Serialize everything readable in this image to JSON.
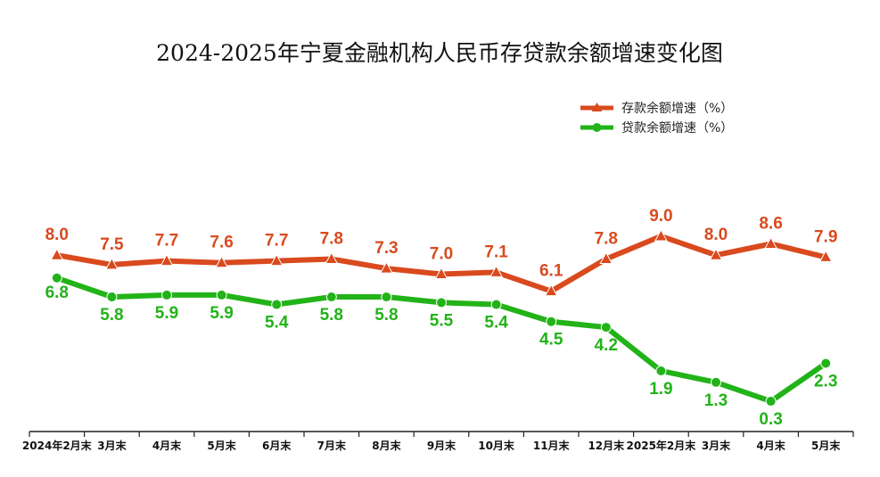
{
  "chart_data": {
    "type": "line",
    "title": "2024-2025年宁夏金融机构人民币存贷款余额增速变化图",
    "categories": [
      "2024年2月末",
      "3月末",
      "4月末",
      "5月末",
      "6月末",
      "7月末",
      "8月末",
      "9月末",
      "10月末",
      "11月末",
      "12月末",
      "2025年2月末",
      "3月末",
      "4月末",
      "5月末"
    ],
    "series": [
      {
        "name": "存款余额增速（%）",
        "color": "#d94a1e",
        "marker": "triangle",
        "values": [
          8.0,
          7.5,
          7.7,
          7.6,
          7.7,
          7.8,
          7.3,
          7.0,
          7.1,
          6.1,
          7.8,
          9.0,
          8.0,
          8.6,
          7.9
        ],
        "labels": [
          "8.0",
          "7.5",
          "7.7",
          "7.6",
          "7.7",
          "7.8",
          "7.3",
          "7.0",
          "7.1",
          "6.1",
          "7.8",
          "9.0",
          "8.0",
          "8.6",
          "7.9"
        ]
      },
      {
        "name": "贷款余额增速（%）",
        "color": "#22b318",
        "marker": "circle",
        "values": [
          6.8,
          5.8,
          5.9,
          5.9,
          5.4,
          5.8,
          5.8,
          5.5,
          5.4,
          4.5,
          4.2,
          1.9,
          1.3,
          0.3,
          2.3
        ],
        "labels": [
          "6.8",
          "5.8",
          "5.9",
          "5.9",
          "5.4",
          "5.8",
          "5.8",
          "5.5",
          "5.4",
          "4.5",
          "4.2",
          "1.9",
          "1.3",
          "0.3",
          "2.3"
        ]
      }
    ],
    "xlabel": "",
    "ylabel": "",
    "ylim": [
      -2,
      16
    ],
    "grid": false,
    "y_axis_visible": false,
    "legend": "top-right"
  }
}
